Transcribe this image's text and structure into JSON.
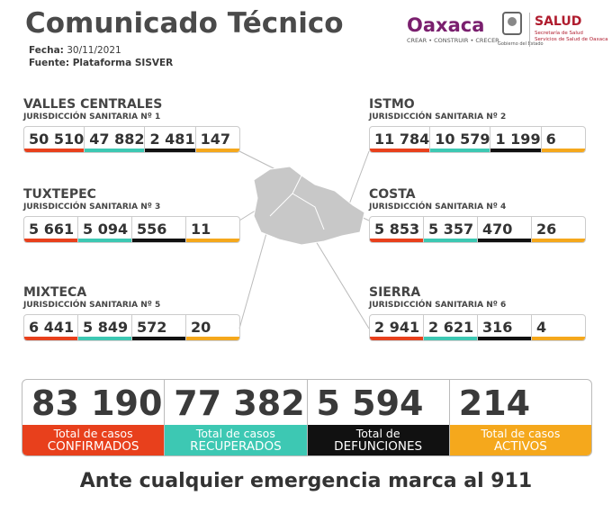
{
  "header": {
    "title": "Comunicado Técnico",
    "date_label": "Fecha:",
    "date": "30/11/2021",
    "source_label": "Fuente:",
    "source": "Plataforma SISVER"
  },
  "logos": {
    "oaxaca": "Oaxaca",
    "oaxaca_motto": "CREAR • CONSTRUIR • CRECER",
    "government": "Gobierno del Estado",
    "salud": "SALUD",
    "salud_sub_1": "Secretaría de Salud",
    "salud_sub_2": "Servicios de Salud de Oaxaca"
  },
  "regions": [
    {
      "name": "VALLES CENTRALES",
      "jurisdiction": "JURISDICCIÓN SANITARIA Nº 1",
      "values": [
        "50 510",
        "47 882",
        "2 481",
        "147"
      ]
    },
    {
      "name": "ISTMO",
      "jurisdiction": "JURISDICCIÓN SANITARIA Nº 2",
      "values": [
        "11 784",
        "10 579",
        "1 199",
        "6"
      ]
    },
    {
      "name": "TUXTEPEC",
      "jurisdiction": "JURISDICCIÓN SANITARIA Nº 3",
      "values": [
        "5 661",
        "5 094",
        "556",
        "11"
      ]
    },
    {
      "name": "COSTA",
      "jurisdiction": "JURISDICCIÓN SANITARIA Nº 4",
      "values": [
        "5 853",
        "5 357",
        "470",
        "26"
      ]
    },
    {
      "name": "MIXTECA",
      "jurisdiction": "JURISDICCIÓN SANITARIA Nº 5",
      "values": [
        "6 441",
        "5 849",
        "572",
        "20"
      ]
    },
    {
      "name": "SIERRA",
      "jurisdiction": "JURISDICCIÓN SANITARIA Nº 6",
      "values": [
        "2 941",
        "2 621",
        "316",
        "4"
      ]
    }
  ],
  "totals": [
    {
      "value": "83 190",
      "label_1": "Total de casos",
      "label_2": "CONFIRMADOS"
    },
    {
      "value": "77 382",
      "label_1": "Total de casos",
      "label_2": "RECUPERADOS"
    },
    {
      "value": "5 594",
      "label_1": "Total de",
      "label_2": "DEFUNCIONES"
    },
    {
      "value": "214",
      "label_1": "Total de casos",
      "label_2": "ACTIVOS"
    }
  ],
  "footer": "Ante cualquier emergencia marca al 911"
}
